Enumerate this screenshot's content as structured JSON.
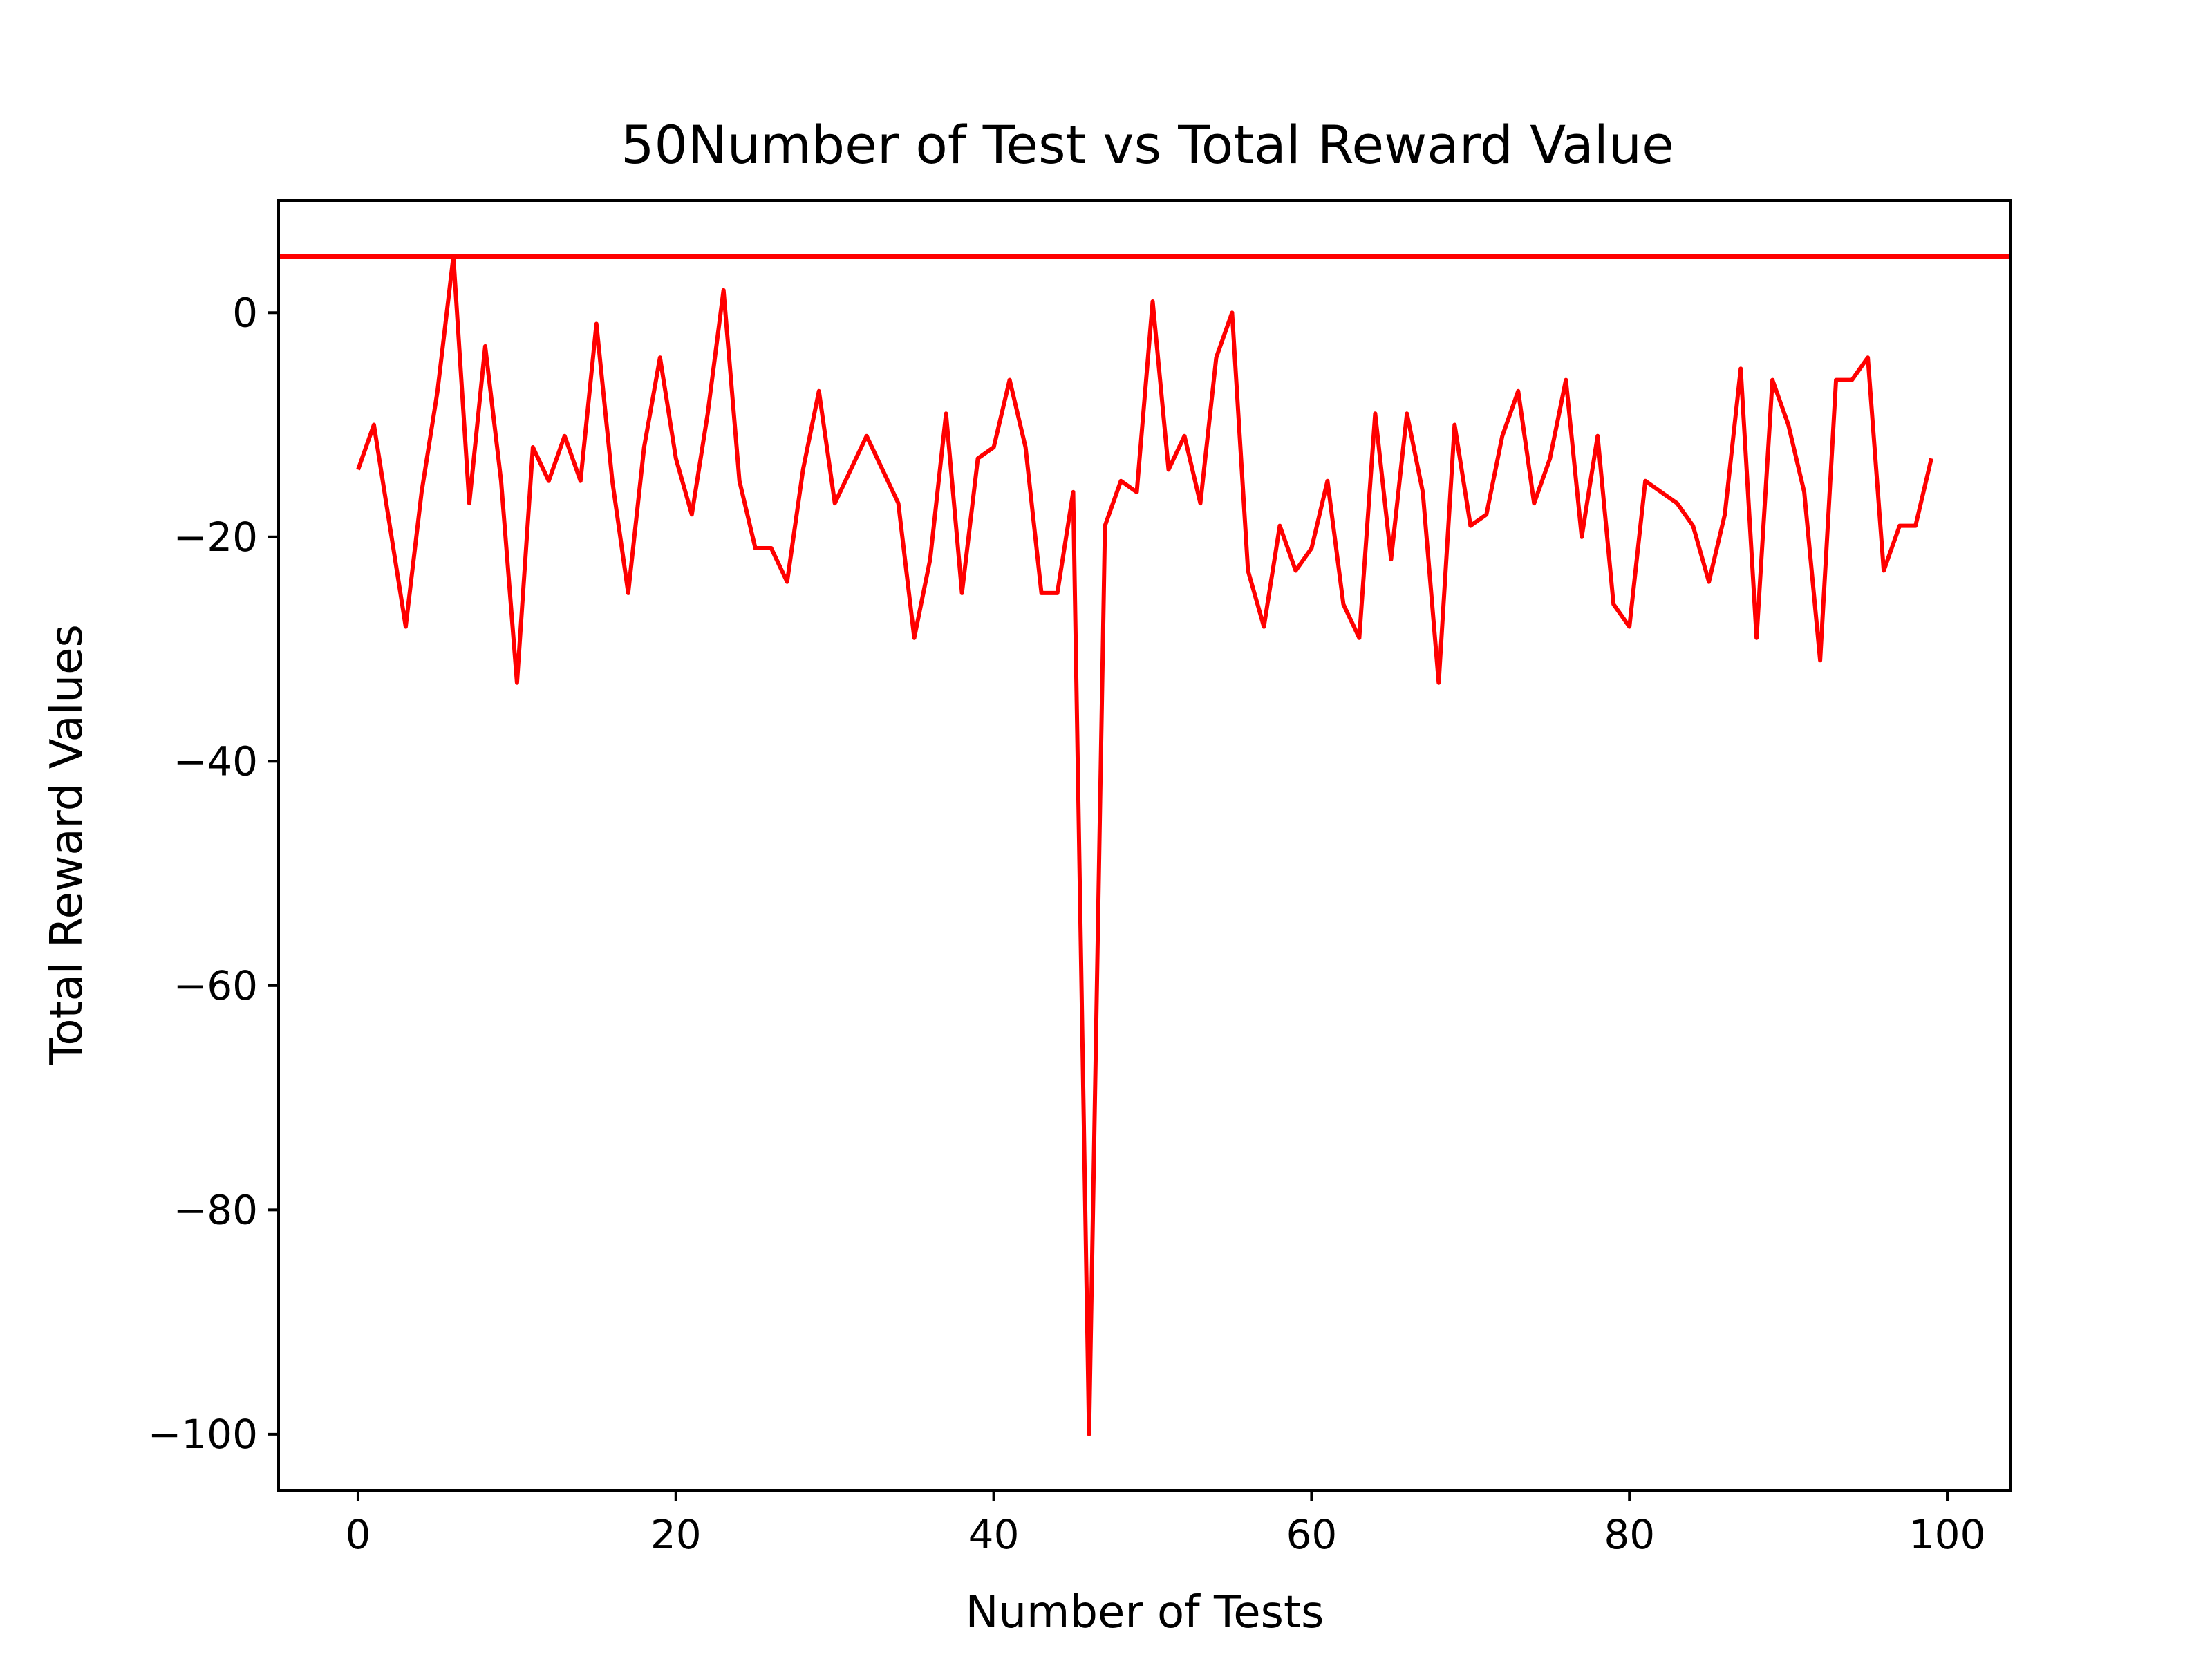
{
  "chart_data": {
    "type": "line",
    "title": "50Number of Test vs Total Reward Value",
    "xlabel": "Number of Tests",
    "ylabel": "Total Reward Values",
    "xlim": [
      -5,
      104
    ],
    "ylim": [
      -105,
      10
    ],
    "x_ticks": [
      0,
      20,
      40,
      60,
      80,
      100
    ],
    "y_ticks": [
      0,
      -20,
      -40,
      -60,
      -80,
      -100
    ],
    "x_tick_labels": [
      "0",
      "20",
      "40",
      "60",
      "80",
      "100"
    ],
    "y_tick_labels": [
      "0",
      "−20",
      "−40",
      "−60",
      "−80",
      "−100"
    ],
    "grid": false,
    "legend": "none",
    "series": [
      {
        "color": "#ff0000",
        "x": [
          0,
          1,
          2,
          3,
          4,
          5,
          6,
          7,
          8,
          9,
          10,
          11,
          12,
          13,
          14,
          15,
          16,
          17,
          18,
          19,
          20,
          21,
          22,
          23,
          24,
          25,
          26,
          27,
          28,
          29,
          30,
          31,
          32,
          33,
          34,
          35,
          36,
          37,
          38,
          39,
          40,
          41,
          42,
          43,
          44,
          45,
          46,
          47,
          48,
          49,
          50,
          51,
          52,
          53,
          54,
          55,
          56,
          57,
          58,
          59,
          60,
          61,
          62,
          63,
          64,
          65,
          66,
          67,
          68,
          69,
          70,
          71,
          72,
          73,
          74,
          75,
          76,
          77,
          78,
          79,
          80,
          81,
          82,
          83,
          84,
          85,
          86,
          87,
          88,
          89,
          90,
          91,
          92,
          93,
          94,
          95,
          96,
          97,
          98,
          99
        ],
        "values": [
          -14,
          -10,
          -19,
          -28,
          -16,
          -7,
          5,
          -17,
          -3,
          -15,
          -33,
          -12,
          -15,
          -11,
          -15,
          -1,
          -15,
          -25,
          -12,
          -4,
          -13,
          -18,
          -9,
          2,
          -15,
          -21,
          -21,
          -24,
          -14,
          -7,
          -17,
          -14,
          -11,
          -14,
          -17,
          -29,
          -22,
          -9,
          -25,
          -13,
          -12,
          -6,
          -12,
          -25,
          -25,
          -16,
          -100,
          -19,
          -15,
          -16,
          1,
          -14,
          -11,
          -17,
          -4,
          0,
          -23,
          -28,
          -19,
          -23,
          -21,
          -15,
          -26,
          -29,
          -9,
          -22,
          -9,
          -16,
          -33,
          -10,
          -19,
          -18,
          -11,
          -7,
          -17,
          -13,
          -6,
          -20,
          -11,
          -26,
          -28,
          -15,
          -16,
          -17,
          -19,
          -24,
          -18,
          -5,
          -29,
          -6,
          -10,
          -16,
          -31,
          -6,
          -6,
          -4,
          -23,
          -19,
          -19,
          -13
        ]
      }
    ],
    "hlines": [
      {
        "y": 5,
        "color": "#ff0000"
      }
    ]
  }
}
